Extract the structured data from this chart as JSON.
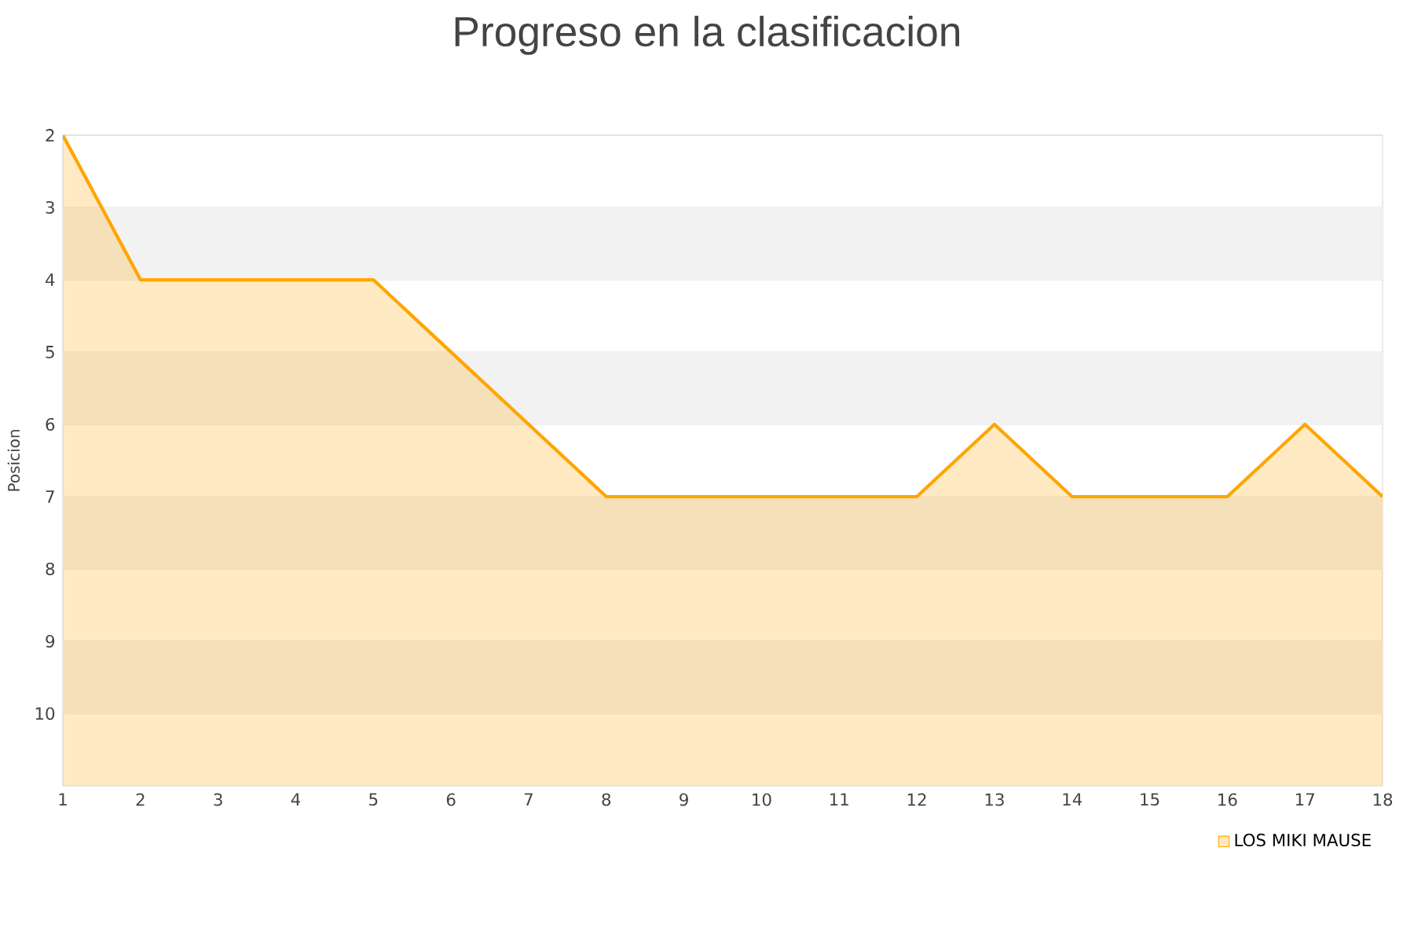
{
  "chart_data": {
    "type": "area",
    "title": "Progreso en la clasificacion",
    "ylabel": "Posicion",
    "x": [
      1,
      2,
      3,
      4,
      5,
      6,
      7,
      8,
      9,
      10,
      11,
      12,
      13,
      14,
      15,
      16,
      17,
      18
    ],
    "series": [
      {
        "name": "LOS MIKI MAUSE",
        "color": "#ffa500",
        "values": [
          2,
          4,
          4,
          4,
          4,
          5,
          6,
          7,
          7,
          7,
          7,
          7,
          6,
          7,
          7,
          7,
          6,
          7
        ]
      }
    ],
    "xlim": [
      1,
      18
    ],
    "xticks": [
      1,
      2,
      3,
      4,
      5,
      6,
      7,
      8,
      9,
      10,
      11,
      12,
      13,
      14,
      15,
      16,
      17,
      18
    ],
    "ylim": [
      11,
      2
    ],
    "yticks": [
      2,
      3,
      4,
      5,
      6,
      7,
      8,
      9,
      10
    ],
    "bands": [
      {
        "axis": "y",
        "from": 3,
        "to": 4,
        "color": "#f2f2f2"
      },
      {
        "axis": "y",
        "from": 5,
        "to": 6,
        "color": "#f2f2f2"
      },
      {
        "axis": "y",
        "from": 7,
        "to": 8,
        "color": "#f2f2f2"
      },
      {
        "axis": "y",
        "from": 9,
        "to": 10,
        "color": "#f2f2f2"
      }
    ],
    "grid": "y",
    "legend": "bottom right",
    "marker": "none",
    "line_style": "solid"
  }
}
